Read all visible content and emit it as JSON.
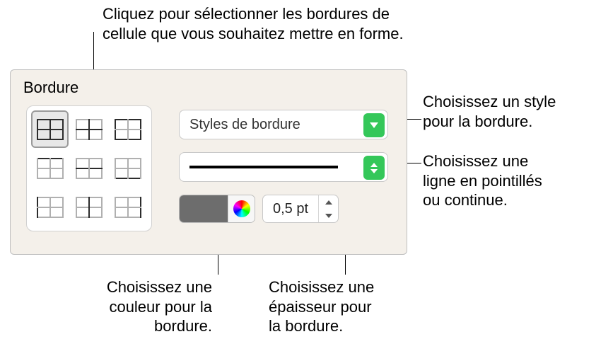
{
  "callouts": {
    "top": "Cliquez pour sélectionner les bordures de\ncellule que vous souhaitez mettre en forme.",
    "style": "Choisissez un style\npour la bordure.",
    "line": "Choisissez une\nligne en pointillés\nou continue.",
    "color": "Choisissez une\ncouleur pour la\nbordure.",
    "thickness": "Choisissez une\népaisseur pour\nla bordure."
  },
  "panel": {
    "section_label": "Bordure",
    "style_dropdown": "Styles de bordure",
    "thickness_value": "0,5 pt",
    "swatch_color": "#6d6d6d",
    "panel_bg": "#f4f0ea",
    "accent": "#34c759"
  }
}
